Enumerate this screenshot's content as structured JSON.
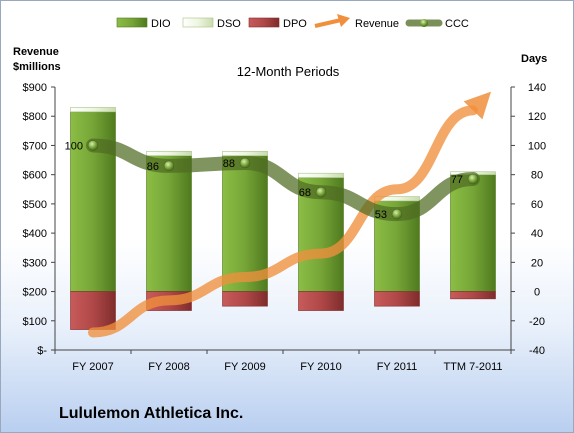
{
  "left_axis_label_line1": "Revenue",
  "left_axis_label_line2": "$millions",
  "right_axis_label": "Days",
  "subtitle": "12-Month Periods",
  "company": "Lululemon Athletica Inc.",
  "chart_data": {
    "type": "bar",
    "categories": [
      "FY 2007",
      "FY 2008",
      "FY 2009",
      "FY 2010",
      "FY 2011",
      "TTM 7-2011"
    ],
    "left_axis": {
      "label": "Revenue $millions",
      "ylim": [
        0,
        900
      ],
      "ticks": [
        "$-",
        "$100",
        "$200",
        "$300",
        "$400",
        "$500",
        "$600",
        "$700",
        "$800",
        "$900"
      ]
    },
    "right_axis": {
      "label": "Days",
      "ylim": [
        -40,
        140
      ],
      "ticks": [
        "-40",
        "-20",
        "0",
        "20",
        "40",
        "60",
        "80",
        "100",
        "120",
        "140"
      ]
    },
    "series": [
      {
        "name": "DIO",
        "kind": "stacked-bar",
        "axis": "right",
        "color": "#6f9c34",
        "values": [
          123,
          93,
          93,
          78,
          62,
          80
        ]
      },
      {
        "name": "DSO",
        "kind": "stacked-bar",
        "axis": "right",
        "color": "#eaf4dc",
        "values": [
          3,
          3,
          3,
          3,
          3,
          2
        ]
      },
      {
        "name": "DPO",
        "kind": "stacked-bar-negative",
        "axis": "right",
        "color": "#b04848",
        "values": [
          -26,
          -13,
          -10,
          -13,
          -10,
          -5
        ]
      },
      {
        "name": "Revenue",
        "kind": "arrow-line",
        "axis": "left",
        "color": "#f08f3c",
        "values": [
          60,
          170,
          250,
          330,
          550,
          820
        ]
      },
      {
        "name": "CCC",
        "kind": "line",
        "axis": "right",
        "color": "#5a7a2a",
        "values": [
          100,
          86,
          88,
          68,
          53,
          77
        ]
      }
    ],
    "data_labels": [
      "100",
      "86",
      "88",
      "68",
      "53",
      "77"
    ],
    "grid": false,
    "legend_position": "top"
  }
}
